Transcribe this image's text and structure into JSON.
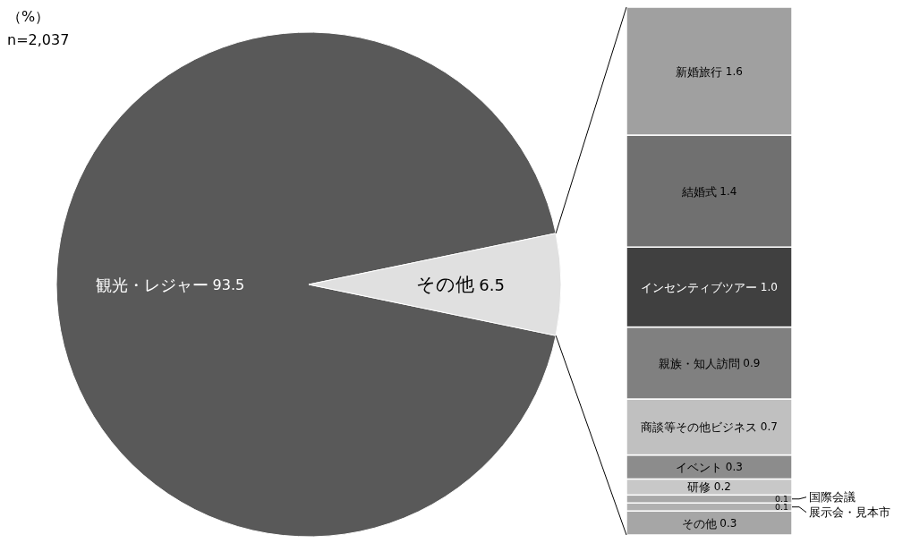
{
  "chart_data": [
    {
      "type": "pie",
      "categories": [
        "観光・レジャー",
        "その他"
      ],
      "values": [
        93.5,
        6.5
      ],
      "colors": [
        "#595959",
        "#e0e0e0"
      ],
      "data_labels": true,
      "annotations": [
        "（%）",
        "n=2,037"
      ]
    },
    {
      "type": "bar",
      "stacked": true,
      "categories": [
        null
      ],
      "series": [
        {
          "name": "その他",
          "color": "#a6a6a6",
          "values": [
            0.3
          ],
          "value_labels": [
            "0.3"
          ]
        },
        {
          "name": "展示会・見本市",
          "color": "#b0b0b0",
          "values": [
            0.1
          ],
          "value_labels": [
            "0.1"
          ]
        },
        {
          "name": "国際会議",
          "color": "#a8a8a8",
          "values": [
            0.1
          ],
          "value_labels": [
            "0.1"
          ]
        },
        {
          "name": "研修",
          "color": "#c8c8c8",
          "values": [
            0.2
          ],
          "value_labels": [
            "0.2"
          ]
        },
        {
          "name": "イベント",
          "color": "#8c8c8c",
          "values": [
            0.3
          ],
          "value_labels": [
            "0.3"
          ]
        },
        {
          "name": "商談等その他ビジネス",
          "color": "#c0c0c0",
          "values": [
            0.7
          ],
          "value_labels": [
            "0.7"
          ]
        },
        {
          "name": "親族・知人訪問",
          "color": "#808080",
          "values": [
            0.9
          ],
          "value_labels": [
            "0.9"
          ]
        },
        {
          "name": "インセンティブツアー",
          "color": "#404040",
          "values": [
            1.0
          ],
          "value_labels": [
            "1.0"
          ]
        },
        {
          "name": "結婚式",
          "color": "#707070",
          "values": [
            1.4
          ],
          "value_labels": [
            "1.4"
          ]
        },
        {
          "name": "新婚旅行",
          "color": "#a0a0a0",
          "values": [
            1.6
          ],
          "value_labels": [
            "1.6"
          ]
        }
      ]
    }
  ]
}
